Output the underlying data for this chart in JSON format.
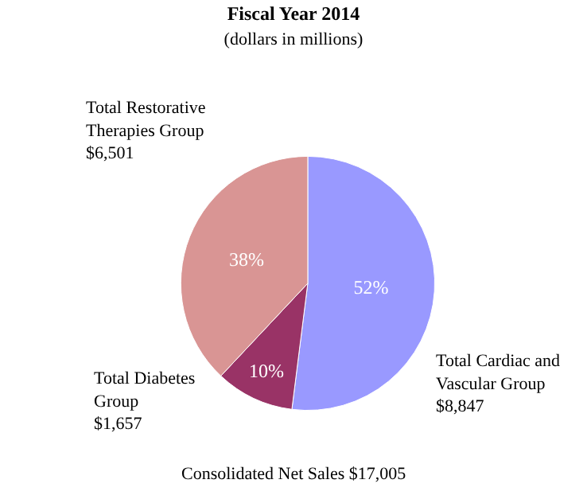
{
  "chart_data": {
    "type": "pie",
    "title": "Fiscal Year 2014",
    "subtitle": "(dollars in millions)",
    "categories": [
      "Total Cardiac and Vascular Group $8,847",
      "Total Diabetes Group $1,657",
      "Total Restorative Therapies Group $6,501"
    ],
    "values": [
      52,
      10,
      38
    ],
    "value_labels": [
      "52%",
      "10%",
      "38%"
    ],
    "colors": [
      "#9999ff",
      "#993366",
      "#d99594"
    ],
    "annotations": [
      "Consolidated Net Sales $17,005"
    ],
    "legend": false
  }
}
